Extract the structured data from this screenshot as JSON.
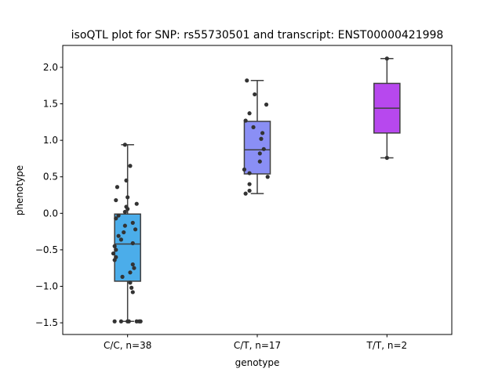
{
  "chart_data": {
    "type": "box",
    "title": "isoQTL plot for SNP: rs55730501 and transcript: ENST00000421998",
    "xlabel": "genotype",
    "ylabel": "phenotype",
    "ylim": [
      -1.66,
      2.3
    ],
    "yticks": [
      -1.5,
      -1.0,
      -0.5,
      0.0,
      0.5,
      1.0,
      1.5,
      2.0
    ],
    "ytick_labels": [
      "−1.5",
      "−1.0",
      "−0.5",
      "0.0",
      "0.5",
      "1.0",
      "1.5",
      "2.0"
    ],
    "grid": false,
    "categories": [
      "C/C, n=38",
      "C/T, n=17",
      "T/T, n=2"
    ],
    "boxes": [
      {
        "category": "C/C, n=38",
        "color": "#4badea",
        "whisker_low": -1.48,
        "q1": -0.93,
        "median": -0.42,
        "q3": -0.01,
        "whisker_high": 0.94,
        "points": [
          [
            -0.02,
            0.94
          ],
          [
            0.02,
            0.65
          ],
          [
            -0.01,
            0.45
          ],
          [
            -0.08,
            0.36
          ],
          [
            0.0,
            0.22
          ],
          [
            -0.09,
            0.18
          ],
          [
            0.07,
            0.13
          ],
          [
            -0.01,
            0.09
          ],
          [
            0.0,
            0.06
          ],
          [
            -0.02,
            0.02
          ],
          [
            -0.07,
            -0.03
          ],
          [
            -0.09,
            -0.07
          ],
          [
            0.04,
            -0.13
          ],
          [
            -0.02,
            -0.17
          ],
          [
            0.06,
            -0.22
          ],
          [
            -0.03,
            -0.26
          ],
          [
            -0.07,
            -0.31
          ],
          [
            -0.05,
            -0.36
          ],
          [
            0.04,
            -0.41
          ],
          [
            -0.1,
            -0.45
          ],
          [
            -0.09,
            -0.5
          ],
          [
            -0.11,
            -0.55
          ],
          [
            -0.09,
            -0.6
          ],
          [
            -0.1,
            -0.64
          ],
          [
            0.04,
            -0.7
          ],
          [
            0.05,
            -0.75
          ],
          [
            0.02,
            -0.81
          ],
          [
            -0.04,
            -0.87
          ],
          [
            0.02,
            -0.95
          ],
          [
            0.03,
            -1.02
          ],
          [
            0.04,
            -1.08
          ],
          [
            -0.1,
            -1.48
          ],
          [
            -0.05,
            -1.48
          ],
          [
            0.0,
            -1.48
          ],
          [
            0.01,
            -1.48
          ],
          [
            0.07,
            -1.48
          ],
          [
            0.1,
            -1.48
          ],
          [
            0.09,
            -1.48
          ]
        ]
      },
      {
        "category": "C/T, n=17",
        "color": "#8a8ff5",
        "whisker_low": 0.27,
        "q1": 0.54,
        "median": 0.87,
        "q3": 1.26,
        "whisker_high": 1.82,
        "points": [
          [
            -0.08,
            1.82
          ],
          [
            -0.02,
            1.63
          ],
          [
            0.07,
            1.49
          ],
          [
            -0.06,
            1.37
          ],
          [
            -0.09,
            1.27
          ],
          [
            -0.03,
            1.18
          ],
          [
            0.04,
            1.1
          ],
          [
            0.03,
            1.02
          ],
          [
            0.05,
            0.88
          ],
          [
            0.02,
            0.82
          ],
          [
            0.02,
            0.71
          ],
          [
            -0.1,
            0.6
          ],
          [
            -0.06,
            0.55
          ],
          [
            0.08,
            0.5
          ],
          [
            -0.06,
            0.4
          ],
          [
            -0.06,
            0.31
          ],
          [
            -0.09,
            0.27
          ]
        ]
      },
      {
        "category": "T/T, n=2",
        "color": "#b748ee",
        "whisker_low": 0.76,
        "q1": 1.1,
        "median": 1.44,
        "q3": 1.78,
        "whisker_high": 2.12,
        "points": [
          [
            0.0,
            2.12
          ],
          [
            0.0,
            0.76
          ]
        ]
      }
    ]
  }
}
